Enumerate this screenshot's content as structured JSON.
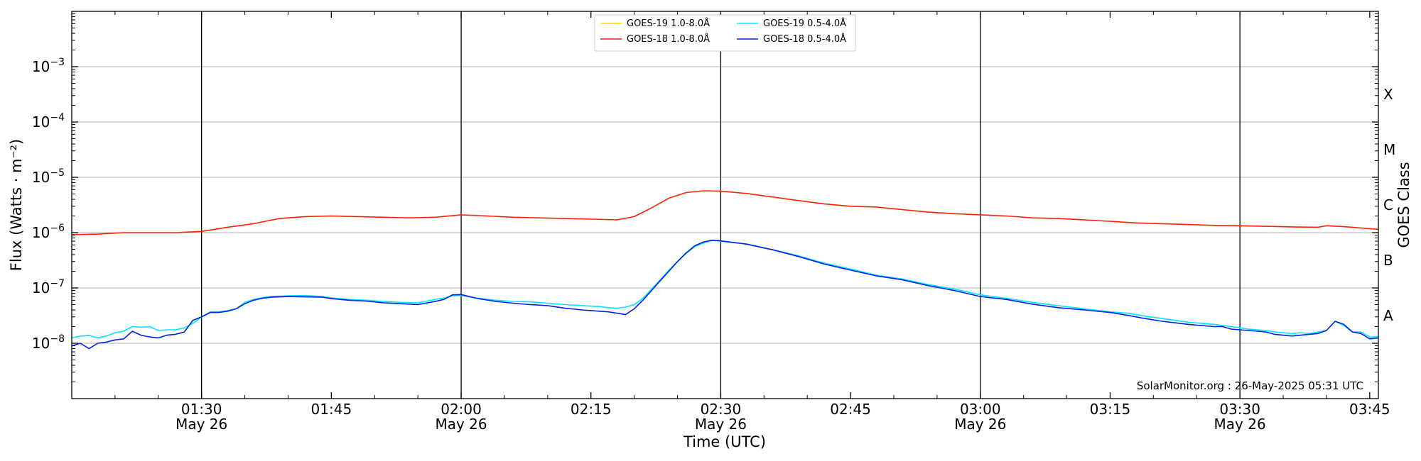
{
  "chart_data": {
    "type": "line",
    "title": "",
    "xlabel": "Time (UTC)",
    "ylabel": "Flux (Watts · m⁻²)",
    "ylabel_right": "GOES Class",
    "y_scale": "log",
    "ylim": [
      1e-09,
      0.01
    ],
    "xlim": [
      "2025-05-26T01:15",
      "2025-05-26T03:46"
    ],
    "grid": "horizontal",
    "legend_position": "top-center",
    "credit": "SolarMonitor.org : 26-May-2025 05:31 UTC",
    "y_ticks": [
      {
        "value": 1e-08,
        "base": "10",
        "exp": "−8"
      },
      {
        "value": 1e-07,
        "base": "10",
        "exp": "−7"
      },
      {
        "value": 1e-06,
        "base": "10",
        "exp": "−6"
      },
      {
        "value": 1e-05,
        "base": "10",
        "exp": "−5"
      },
      {
        "value": 0.0001,
        "base": "10",
        "exp": "−4"
      },
      {
        "value": 0.001,
        "base": "10",
        "exp": "−3"
      }
    ],
    "x_ticks": [
      {
        "time": "01:30",
        "label": "01:30",
        "date": "May 26"
      },
      {
        "time": "01:45",
        "label": "01:45",
        "date": ""
      },
      {
        "time": "02:00",
        "label": "02:00",
        "date": "May 26"
      },
      {
        "time": "02:15",
        "label": "02:15",
        "date": ""
      },
      {
        "time": "02:30",
        "label": "02:30",
        "date": "May 26"
      },
      {
        "time": "02:45",
        "label": "02:45",
        "date": ""
      },
      {
        "time": "03:00",
        "label": "03:00",
        "date": "May 26"
      },
      {
        "time": "03:15",
        "label": "03:15",
        "date": ""
      },
      {
        "time": "03:30",
        "label": "03:30",
        "date": "May 26"
      },
      {
        "time": "03:45",
        "label": "03:45",
        "date": ""
      }
    ],
    "vlines": [
      "01:30",
      "02:00",
      "02:30",
      "03:00",
      "03:30"
    ],
    "goes_classes": [
      {
        "label": "A",
        "lo": 1e-08,
        "hi": 1e-07
      },
      {
        "label": "B",
        "lo": 1e-07,
        "hi": 1e-06
      },
      {
        "label": "C",
        "lo": 1e-06,
        "hi": 1e-05
      },
      {
        "label": "M",
        "lo": 1e-05,
        "hi": 0.0001
      },
      {
        "label": "X",
        "lo": 0.0001,
        "hi": 0.001
      }
    ],
    "series": [
      {
        "name": "GOES-19 1.0-8.0Å",
        "color": "#ffd700",
        "x": [],
        "y": []
      },
      {
        "name": "GOES-18 1.0-8.0Å",
        "color": "#ff2200",
        "x": [
          "01:15",
          "01:18",
          "01:21",
          "01:24",
          "01:27",
          "01:30",
          "01:33",
          "01:36",
          "01:39",
          "01:42",
          "01:45",
          "01:48",
          "01:51",
          "01:54",
          "01:57",
          "02:00",
          "02:03",
          "02:06",
          "02:09",
          "02:12",
          "02:15",
          "02:18",
          "02:20",
          "02:22",
          "02:24",
          "02:26",
          "02:28",
          "02:30",
          "02:33",
          "02:36",
          "02:39",
          "02:42",
          "02:45",
          "02:48",
          "02:51",
          "02:54",
          "02:57",
          "03:00",
          "03:03",
          "03:06",
          "03:09",
          "03:12",
          "03:15",
          "03:18",
          "03:21",
          "03:24",
          "03:27",
          "03:30",
          "03:33",
          "03:36",
          "03:39",
          "03:40",
          "03:42",
          "03:45",
          "03:46"
        ],
        "y": [
          9.2e-07,
          9.4e-07,
          1e-06,
          1e-06,
          1e-06,
          1.05e-06,
          1.25e-06,
          1.45e-06,
          1.8e-06,
          1.95e-06,
          2e-06,
          1.95e-06,
          1.9e-06,
          1.85e-06,
          1.9e-06,
          2.1e-06,
          2e-06,
          1.9e-06,
          1.85e-06,
          1.8e-06,
          1.75e-06,
          1.7e-06,
          1.95e-06,
          2.8e-06,
          4.2e-06,
          5.3e-06,
          5.7e-06,
          5.6e-06,
          5.1e-06,
          4.4e-06,
          3.8e-06,
          3.3e-06,
          3e-06,
          2.9e-06,
          2.6e-06,
          2.35e-06,
          2.2e-06,
          2.1e-06,
          2e-06,
          1.85e-06,
          1.8e-06,
          1.7e-06,
          1.6e-06,
          1.5e-06,
          1.45e-06,
          1.4e-06,
          1.35e-06,
          1.33e-06,
          1.3e-06,
          1.27e-06,
          1.25e-06,
          1.33e-06,
          1.28e-06,
          1.18e-06,
          1.15e-06
        ]
      },
      {
        "name": "GOES-19 0.5-4.0Å",
        "color": "#00e5ff",
        "x": [
          "01:15",
          "01:16",
          "01:17",
          "01:18",
          "01:19",
          "01:20",
          "01:21",
          "01:22",
          "01:23",
          "01:24",
          "01:25",
          "01:26",
          "01:27",
          "01:28",
          "01:29",
          "01:30",
          "01:31",
          "01:32",
          "01:33",
          "01:34",
          "01:35",
          "01:36",
          "01:37",
          "01:38",
          "01:39",
          "01:40",
          "01:42",
          "01:44",
          "01:45",
          "01:47",
          "01:49",
          "01:51",
          "01:53",
          "01:55",
          "01:57",
          "01:58",
          "01:59",
          "02:00",
          "02:02",
          "02:04",
          "02:06",
          "02:08",
          "02:10",
          "02:12",
          "02:14",
          "02:16",
          "02:17",
          "02:18",
          "02:19",
          "02:20",
          "02:21",
          "02:22",
          "02:23",
          "02:24",
          "02:25",
          "02:26",
          "02:27",
          "02:28",
          "02:29",
          "02:30",
          "02:33",
          "02:36",
          "02:39",
          "02:42",
          "02:45",
          "02:48",
          "02:51",
          "02:54",
          "02:57",
          "03:00",
          "03:03",
          "03:06",
          "03:09",
          "03:12",
          "03:15",
          "03:17",
          "03:18",
          "03:19",
          "03:21",
          "03:24",
          "03:27",
          "03:28",
          "03:29",
          "03:30",
          "03:31",
          "03:32",
          "03:33",
          "03:34",
          "03:35",
          "03:36",
          "03:37",
          "03:38",
          "03:39",
          "03:40",
          "03:41",
          "03:42",
          "03:43",
          "03:44",
          "03:45",
          "03:46"
        ],
        "y": [
          1.25e-08,
          1.35e-08,
          1.38e-08,
          1.25e-08,
          1.35e-08,
          1.55e-08,
          1.65e-08,
          2e-08,
          1.95e-08,
          2e-08,
          1.7e-08,
          1.75e-08,
          1.75e-08,
          1.9e-08,
          2.3e-08,
          3e-08,
          3.7e-08,
          3.7e-08,
          3.9e-08,
          4.2e-08,
          5.5e-08,
          6.2e-08,
          6.7e-08,
          7e-08,
          7.1e-08,
          7.2e-08,
          7.3e-08,
          7e-08,
          6.6e-08,
          6.2e-08,
          6e-08,
          5.7e-08,
          5.5e-08,
          5.4e-08,
          6.2e-08,
          6.6e-08,
          7.2e-08,
          7.3e-08,
          6.5e-08,
          6e-08,
          5.7e-08,
          5.6e-08,
          5.3e-08,
          5e-08,
          4.8e-08,
          4.6e-08,
          4.4e-08,
          4.3e-08,
          4.5e-08,
          5e-08,
          6.5e-08,
          9.5e-08,
          1.4e-07,
          2.1e-07,
          3e-07,
          4.2e-07,
          5.6e-07,
          6.5e-07,
          7.2e-07,
          7e-07,
          6.2e-07,
          4.9e-07,
          3.8e-07,
          2.8e-07,
          2.2e-07,
          1.7e-07,
          1.45e-07,
          1.15e-07,
          9.5e-08,
          7.5e-08,
          6.5e-08,
          5.5e-08,
          4.8e-08,
          4.2e-08,
          3.7e-08,
          3.5e-08,
          3.3e-08,
          3.1e-08,
          2.8e-08,
          2.4e-08,
          2.2e-08,
          2.1e-08,
          2e-08,
          1.9e-08,
          1.8e-08,
          1.75e-08,
          1.7e-08,
          1.6e-08,
          1.55e-08,
          1.5e-08,
          1.55e-08,
          1.5e-08,
          1.6e-08,
          1.7e-08,
          2.5e-08,
          2.1e-08,
          1.6e-08,
          1.6e-08,
          1.3e-08,
          1.3e-08
        ]
      },
      {
        "name": "GOES-18 0.5-4.0Å",
        "color": "#0022dd",
        "x": [
          "01:15",
          "01:16",
          "01:17",
          "01:18",
          "01:19",
          "01:20",
          "01:21",
          "01:22",
          "01:23",
          "01:24",
          "01:25",
          "01:26",
          "01:27",
          "01:28",
          "01:29",
          "01:30",
          "01:31",
          "01:32",
          "01:33",
          "01:34",
          "01:35",
          "01:36",
          "01:37",
          "01:38",
          "01:39",
          "01:40",
          "01:42",
          "01:44",
          "01:45",
          "01:47",
          "01:49",
          "01:51",
          "01:53",
          "01:55",
          "01:57",
          "01:58",
          "01:59",
          "02:00",
          "02:02",
          "02:04",
          "02:06",
          "02:08",
          "02:10",
          "02:12",
          "02:14",
          "02:16",
          "02:17",
          "02:18",
          "02:19",
          "02:20",
          "02:21",
          "02:22",
          "02:23",
          "02:24",
          "02:25",
          "02:26",
          "02:27",
          "02:28",
          "02:29",
          "02:30",
          "02:33",
          "02:36",
          "02:39",
          "02:42",
          "02:45",
          "02:48",
          "02:51",
          "02:54",
          "02:57",
          "03:00",
          "03:03",
          "03:06",
          "03:09",
          "03:12",
          "03:15",
          "03:17",
          "03:18",
          "03:19",
          "03:21",
          "03:24",
          "03:27",
          "03:28",
          "03:29",
          "03:30",
          "03:31",
          "03:32",
          "03:33",
          "03:34",
          "03:35",
          "03:36",
          "03:37",
          "03:38",
          "03:39",
          "03:40",
          "03:41",
          "03:42",
          "03:43",
          "03:44",
          "03:45",
          "03:46"
        ],
        "y": [
          9e-09,
          1e-08,
          8e-09,
          1e-08,
          1.05e-08,
          1.15e-08,
          1.2e-08,
          1.65e-08,
          1.4e-08,
          1.3e-08,
          1.25e-08,
          1.4e-08,
          1.45e-08,
          1.6e-08,
          2.6e-08,
          3e-08,
          3.6e-08,
          3.6e-08,
          3.8e-08,
          4.2e-08,
          5.2e-08,
          6e-08,
          6.5e-08,
          6.8e-08,
          6.9e-08,
          7e-08,
          6.9e-08,
          6.8e-08,
          6.4e-08,
          6e-08,
          5.8e-08,
          5.4e-08,
          5.2e-08,
          5e-08,
          5.7e-08,
          6.2e-08,
          7.5e-08,
          7.6e-08,
          6.4e-08,
          5.7e-08,
          5.3e-08,
          5e-08,
          4.8e-08,
          4.3e-08,
          4e-08,
          3.8e-08,
          3.7e-08,
          3.5e-08,
          3.3e-08,
          4.2e-08,
          6e-08,
          9e-08,
          1.35e-07,
          2e-07,
          3e-07,
          4.3e-07,
          5.8e-07,
          6.8e-07,
          7.3e-07,
          7.1e-07,
          6.2e-07,
          4.9e-07,
          3.7e-07,
          2.7e-07,
          2.1e-07,
          1.65e-07,
          1.4e-07,
          1.1e-07,
          9e-08,
          7e-08,
          6.2e-08,
          5.1e-08,
          4.4e-08,
          4e-08,
          3.6e-08,
          3.2e-08,
          3e-08,
          2.8e-08,
          2.5e-08,
          2.2e-08,
          2e-08,
          2e-08,
          1.8e-08,
          1.75e-08,
          1.7e-08,
          1.65e-08,
          1.6e-08,
          1.45e-08,
          1.4e-08,
          1.35e-08,
          1.4e-08,
          1.45e-08,
          1.5e-08,
          1.7e-08,
          2.5e-08,
          2.2e-08,
          1.6e-08,
          1.5e-08,
          1.2e-08,
          1.25e-08
        ]
      }
    ]
  }
}
